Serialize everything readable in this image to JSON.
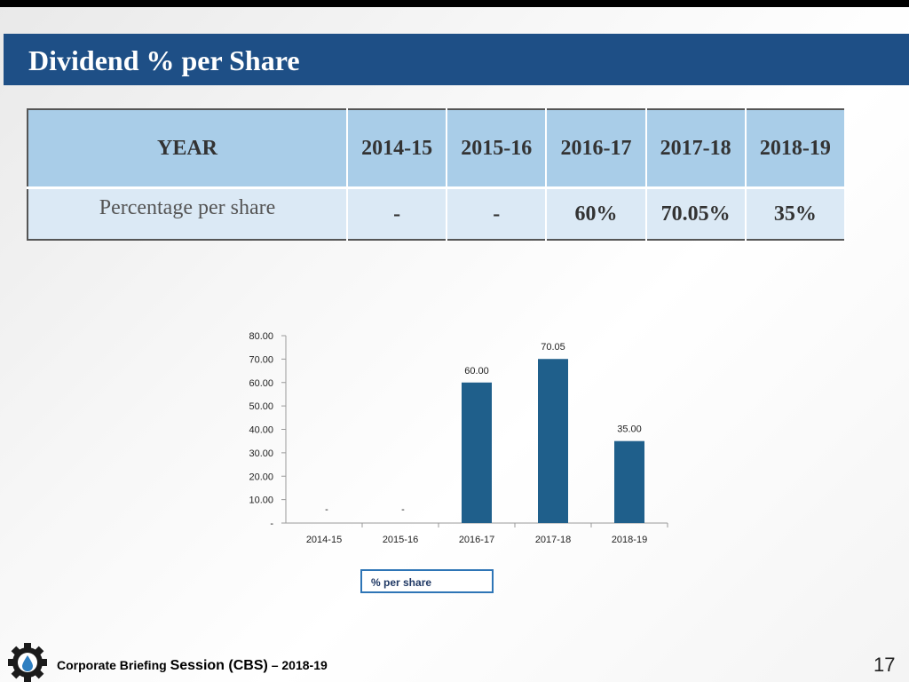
{
  "slide": {
    "title": "Dividend % per Share",
    "page_number": "17"
  },
  "table": {
    "header": [
      "YEAR",
      "2014-15",
      "2015-16",
      "2016-17",
      "2017-18",
      "2018-19"
    ],
    "row_label": "Percentage per share",
    "row_values": [
      "-",
      "-",
      "60%",
      "70.05%",
      "35%"
    ]
  },
  "chart_data": {
    "type": "bar",
    "title": "",
    "xlabel": "",
    "ylabel": "",
    "categories": [
      "2014-15",
      "2015-16",
      "2016-17",
      "2017-18",
      "2018-19"
    ],
    "series": [
      {
        "name": "% per share",
        "values": [
          0,
          0,
          60.0,
          70.05,
          35.0
        ]
      }
    ],
    "data_labels": [
      "-",
      "-",
      "60.00",
      "70.05",
      "35.00"
    ],
    "ylim": [
      0,
      80
    ],
    "y_ticks": [
      0,
      10,
      20,
      30,
      40,
      50,
      60,
      70,
      80
    ],
    "y_tick_labels": [
      "-",
      "10.00",
      "20.00",
      "30.00",
      "40.00",
      "50.00",
      "60.00",
      "70.00",
      "80.00"
    ],
    "legend": "bottom-center",
    "grid": false,
    "bar_color": "#1f5f8b"
  },
  "footer": {
    "text_part1": "Corporate Briefing ",
    "text_part2": "Session (CBS)",
    "text_part3": " – 2018-19",
    "logo_icon": "gear-logo-icon"
  }
}
